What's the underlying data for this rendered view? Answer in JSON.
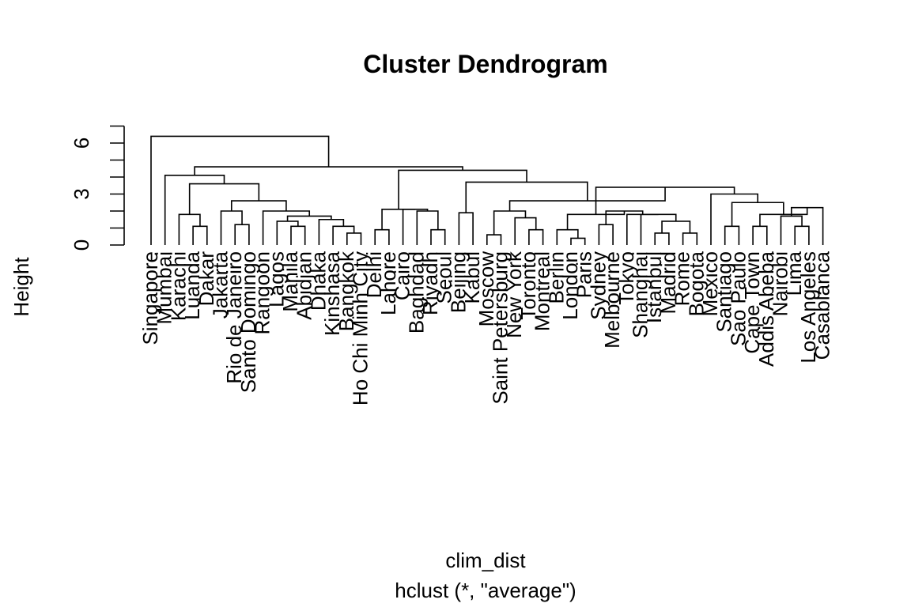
{
  "chart_data": {
    "type": "dendrogram",
    "title": "Cluster Dendrogram",
    "xlabel": "clim_dist",
    "sublabel": "hclust (*, \"average\")",
    "ylabel": "Height",
    "yticks": [
      0,
      3,
      6
    ],
    "ylim": [
      0,
      7
    ],
    "grid": false,
    "legend": "none",
    "leaves": [
      "Singapore",
      "Mumbai",
      "Karachi",
      "Luanda",
      "Dakar",
      "Jakarta",
      "Rio de Janeiro",
      "Santo Domingo",
      "Rangoon",
      "Lagos",
      "Manila",
      "Abidjan",
      "Dhaka",
      "Kinshasa",
      "Bangkok",
      "Ho Chi Minh City",
      "Delhi",
      "Lahore",
      "Cairo",
      "Baghdad",
      "Riyadh",
      "Seoul",
      "Beijing",
      "Kabul",
      "Moscow",
      "Saint Petersburg",
      "New York",
      "Toronto",
      "Montreal",
      "Berlin",
      "London",
      "Paris",
      "Sydney",
      "Melbourne",
      "Tokyo",
      "Shanghai",
      "Istanbul",
      "Madrid",
      "Rome",
      "Bogota",
      "Mexico",
      "Santiago",
      "Sao Paulo",
      "Cape Town",
      "Addis Abeba",
      "Nairobi",
      "Lima",
      "Los Angeles",
      "Casablanca"
    ],
    "merges": [
      {
        "id": "A1",
        "children": [
          "Dakar",
          "Luanda"
        ],
        "height": 1.1
      },
      {
        "id": "A2",
        "children": [
          "Karachi",
          "A1"
        ],
        "height": 1.8
      },
      {
        "id": "A3",
        "children": [
          "Santo Domingo",
          "Rio de Janeiro"
        ],
        "height": 1.2
      },
      {
        "id": "A4",
        "children": [
          "Jakarta",
          "A3"
        ],
        "height": 2.0
      },
      {
        "id": "A5",
        "children": [
          "Manila",
          "Abidjan"
        ],
        "height": 1.1
      },
      {
        "id": "A6",
        "children": [
          "Lagos",
          "A5"
        ],
        "height": 1.4
      },
      {
        "id": "A7",
        "children": [
          "Bangkok",
          "Ho Chi Minh City"
        ],
        "height": 0.7
      },
      {
        "id": "A8",
        "children": [
          "Kinshasa",
          "A7"
        ],
        "height": 1.1
      },
      {
        "id": "A9",
        "children": [
          "Dhaka",
          "A8"
        ],
        "height": 1.5
      },
      {
        "id": "A10",
        "children": [
          "A6",
          "A9"
        ],
        "height": 1.7
      },
      {
        "id": "A11",
        "children": [
          "Rangoon",
          "A10"
        ],
        "height": 2.0
      },
      {
        "id": "A12",
        "children": [
          "A4",
          "A11"
        ],
        "height": 2.6
      },
      {
        "id": "A13",
        "children": [
          "A2",
          "A12"
        ],
        "height": 3.6
      },
      {
        "id": "A14",
        "children": [
          "Mumbai",
          "A13"
        ],
        "height": 4.1
      },
      {
        "id": "B1",
        "children": [
          "Delhi",
          "Lahore"
        ],
        "height": 0.9
      },
      {
        "id": "B2",
        "children": [
          "Riyadh",
          "Seoul"
        ],
        "height": 0.9
      },
      {
        "id": "B3",
        "children": [
          "Baghdad",
          "B2"
        ],
        "height": 2.0
      },
      {
        "id": "B4",
        "children": [
          "Cairo",
          "B3"
        ],
        "height": 2.1
      },
      {
        "id": "B5",
        "children": [
          "B1",
          "B4"
        ],
        "height": 2.1
      },
      {
        "id": "B6",
        "children": [
          "Kabul",
          "Beijing"
        ],
        "height": 1.9
      },
      {
        "id": "B7",
        "children": [
          "Moscow",
          "Saint Petersburg"
        ],
        "height": 0.6
      },
      {
        "id": "B8",
        "children": [
          "Toronto",
          "Montreal"
        ],
        "height": 0.9
      },
      {
        "id": "B9",
        "children": [
          "New York",
          "B8"
        ],
        "height": 1.6
      },
      {
        "id": "B10",
        "children": [
          "B7",
          "B9"
        ],
        "height": 2.0
      },
      {
        "id": "B11",
        "children": [
          "London",
          "Paris"
        ],
        "height": 0.4
      },
      {
        "id": "B12",
        "children": [
          "Berlin",
          "B11"
        ],
        "height": 0.9
      },
      {
        "id": "B13",
        "children": [
          "Sydney",
          "Melbourne"
        ],
        "height": 1.2
      },
      {
        "id": "B14",
        "children": [
          "Istanbul",
          "Madrid"
        ],
        "height": 0.7
      },
      {
        "id": "B15",
        "children": [
          "Rome",
          "Bogota"
        ],
        "height": 0.7
      },
      {
        "id": "B16",
        "children": [
          "B14",
          "B15"
        ],
        "height": 1.4
      },
      {
        "id": "B17",
        "children": [
          "Shanghai",
          "B16"
        ],
        "height": 1.8
      },
      {
        "id": "B18",
        "children": [
          "Tokyo",
          "B17"
        ],
        "height": 1.8
      },
      {
        "id": "B19",
        "children": [
          "B13",
          "B18"
        ],
        "height": 2.0
      },
      {
        "id": "B20",
        "children": [
          "B12",
          "B19"
        ],
        "height": 1.8
      },
      {
        "id": "B21",
        "children": [
          "Santiago",
          "Sao Paulo"
        ],
        "height": 1.1
      },
      {
        "id": "B22",
        "children": [
          "Cape Town",
          "Addis Abeba"
        ],
        "height": 1.1
      },
      {
        "id": "B23",
        "children": [
          "Lima",
          "Los Angeles"
        ],
        "height": 1.1
      },
      {
        "id": "B24",
        "children": [
          "Nairobi",
          "B23"
        ],
        "height": 1.7
      },
      {
        "id": "B25",
        "children": [
          "Casablanca",
          "B24"
        ],
        "height": 2.2
      },
      {
        "id": "B26",
        "children": [
          "B22",
          "B25"
        ],
        "height": 1.8
      },
      {
        "id": "B27",
        "children": [
          "B21",
          "B26"
        ],
        "height": 2.5
      },
      {
        "id": "B28",
        "children": [
          "Mexico",
          "B27"
        ],
        "height": 3.0
      },
      {
        "id": "B29",
        "children": [
          "B20",
          "B28"
        ],
        "height": 3.4
      },
      {
        "id": "B30",
        "children": [
          "B10",
          "B29"
        ],
        "height": 2.6
      },
      {
        "id": "B31",
        "children": [
          "B6",
          "B30"
        ],
        "height": 3.7
      },
      {
        "id": "B32",
        "children": [
          "B5",
          "B31"
        ],
        "height": 4.4
      },
      {
        "id": "R1",
        "children": [
          "A14",
          "B32"
        ],
        "height": 4.6
      },
      {
        "id": "ROOT",
        "children": [
          "Singapore",
          "R1"
        ],
        "height": 6.4
      }
    ]
  }
}
